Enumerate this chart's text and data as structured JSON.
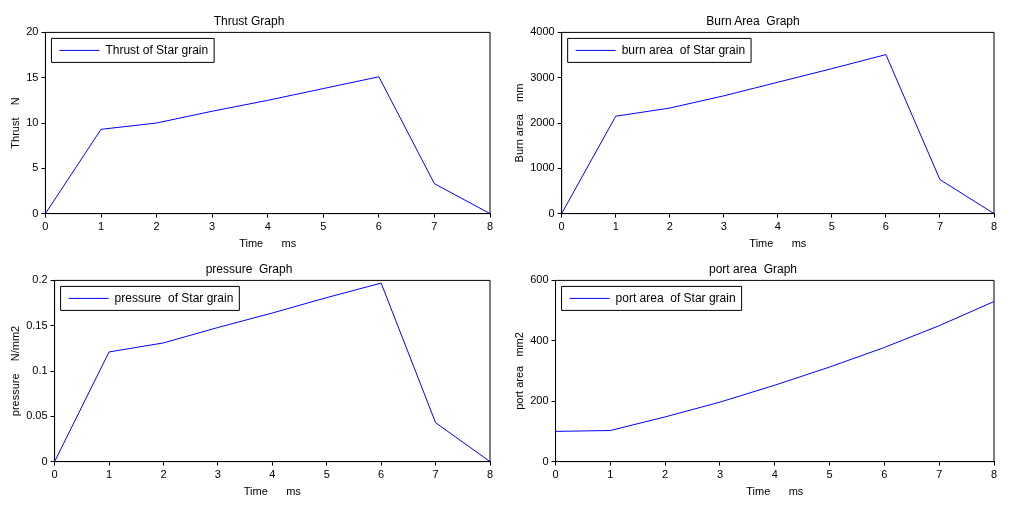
{
  "chart_data": [
    {
      "type": "line",
      "title": "Thrust Graph",
      "xlabel": "Time      ms",
      "ylabel": "Thrust    N",
      "x": [
        0,
        1,
        2,
        3,
        4,
        5,
        6,
        7,
        8
      ],
      "series": [
        {
          "name": "Thrust of Star grain",
          "color": "#0000ff",
          "values": [
            0,
            9.3,
            10,
            11.3,
            12.5,
            13.8,
            15.1,
            3.3,
            0
          ]
        }
      ],
      "xlim": [
        0,
        8
      ],
      "xticks": [
        0,
        1,
        2,
        3,
        4,
        5,
        6,
        7,
        8
      ],
      "ylim": [
        0,
        20
      ],
      "yticks": [
        0,
        5,
        10,
        15,
        20
      ],
      "legend": "top left",
      "grid": false
    },
    {
      "type": "line",
      "title": "Burn Area  Graph",
      "xlabel": "Time      ms",
      "ylabel": "Burn area    mm",
      "x": [
        0,
        1,
        2,
        3,
        4,
        5,
        6,
        7,
        8
      ],
      "series": [
        {
          "name": "burn area  of Star grain",
          "color": "#0000ff",
          "values": [
            0,
            2150,
            2330,
            2600,
            2900,
            3200,
            3510,
            750,
            0
          ]
        }
      ],
      "xlim": [
        0,
        8
      ],
      "xticks": [
        0,
        1,
        2,
        3,
        4,
        5,
        6,
        7,
        8
      ],
      "ylim": [
        0,
        4000
      ],
      "yticks": [
        0,
        1000,
        2000,
        3000,
        4000
      ],
      "legend": "top left",
      "grid": false
    },
    {
      "type": "line",
      "title": "pressure  Graph",
      "xlabel": "Time      ms",
      "ylabel": "pressure    N/mm2",
      "x": [
        0,
        1,
        2,
        3,
        4,
        5,
        6,
        7,
        8
      ],
      "series": [
        {
          "name": "pressure  of Star grain",
          "color": "#0000ff",
          "values": [
            0,
            0.121,
            0.131,
            0.148,
            0.164,
            0.181,
            0.197,
            0.043,
            0
          ]
        }
      ],
      "xlim": [
        0,
        8
      ],
      "xticks": [
        0,
        1,
        2,
        3,
        4,
        5,
        6,
        7,
        8
      ],
      "ylim": [
        0,
        0.2
      ],
      "yticks": [
        0,
        0.05,
        0.1,
        0.15,
        0.2
      ],
      "legend": "top left",
      "grid": false
    },
    {
      "type": "line",
      "title": "port area  Graph",
      "xlabel": "Time      ms",
      "ylabel": "port area   mm2",
      "x": [
        0,
        1,
        2,
        3,
        4,
        5,
        6,
        7,
        8
      ],
      "series": [
        {
          "name": "port area  of Star grain",
          "color": "#0000ff",
          "values": [
            100,
            103,
            148,
            197,
            253,
            313,
            378,
            450,
            530
          ]
        }
      ],
      "xlim": [
        0,
        8
      ],
      "xticks": [
        0,
        1,
        2,
        3,
        4,
        5,
        6,
        7,
        8
      ],
      "ylim": [
        0,
        600
      ],
      "yticks": [
        0,
        200,
        400,
        600
      ],
      "legend": "top left",
      "grid": false
    }
  ]
}
